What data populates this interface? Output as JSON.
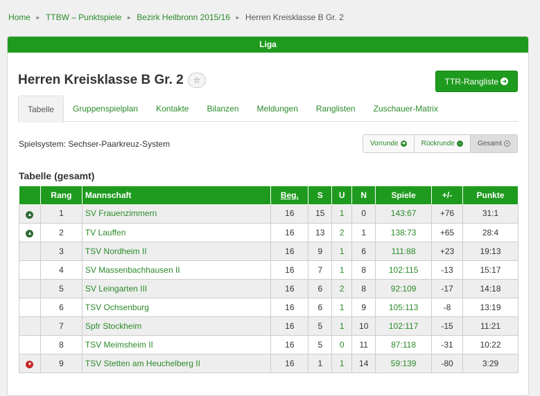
{
  "breadcrumb": [
    {
      "label": "Home",
      "link": true
    },
    {
      "label": "TTBW – Punktspiele",
      "link": true
    },
    {
      "label": "Bezirk Heilbronn 2015/16",
      "link": true
    },
    {
      "label": "Herren Kreisklasse B Gr. 2",
      "link": false
    }
  ],
  "panel_title": "Liga",
  "page_title": "Herren Kreisklasse B Gr. 2",
  "star_glyph": "☆",
  "ttr_button": "TTR-Rangliste",
  "tabs": [
    "Tabelle",
    "Gruppenspielplan",
    "Kontakte",
    "Bilanzen",
    "Meldungen",
    "Ranglisten",
    "Zuschauer-Matrix"
  ],
  "active_tab": 0,
  "spielsystem": "Spielsystem: Sechser-Paarkreuz-System",
  "round_buttons": [
    {
      "label": "Vorrunde",
      "icon": "arrow-right-circle-icon",
      "glyph": "➔",
      "active": false
    },
    {
      "label": "Rückrunde",
      "icon": "arrow-left-circle-icon",
      "glyph": "←",
      "active": false
    },
    {
      "label": "Gesamt",
      "icon": "dot-circle-icon",
      "glyph": "•",
      "active": true
    }
  ],
  "table_heading": "Tabelle (gesamt)",
  "columns": [
    "",
    "Rang",
    "Mannschaft",
    "Beg.",
    "S",
    "U",
    "N",
    "Spiele",
    "+/-",
    "Punkte"
  ],
  "rows": [
    {
      "trend": "up",
      "rang": "1",
      "team": "SV Frauenzimmern",
      "beg": "16",
      "s": "15",
      "u": "1",
      "n": "0",
      "spiele": "143:67",
      "diff": "+76",
      "punkte": "31:1"
    },
    {
      "trend": "up",
      "rang": "2",
      "team": "TV Lauffen",
      "beg": "16",
      "s": "13",
      "u": "2",
      "n": "1",
      "spiele": "138:73",
      "diff": "+65",
      "punkte": "28:4"
    },
    {
      "trend": "",
      "rang": "3",
      "team": "TSV Nordheim II",
      "beg": "16",
      "s": "9",
      "u": "1",
      "n": "6",
      "spiele": "111:88",
      "diff": "+23",
      "punkte": "19:13"
    },
    {
      "trend": "",
      "rang": "4",
      "team": "SV Massenbachhausen II",
      "beg": "16",
      "s": "7",
      "u": "1",
      "n": "8",
      "spiele": "102:115",
      "diff": "-13",
      "punkte": "15:17"
    },
    {
      "trend": "",
      "rang": "5",
      "team": "SV Leingarten III",
      "beg": "16",
      "s": "6",
      "u": "2",
      "n": "8",
      "spiele": "92:109",
      "diff": "-17",
      "punkte": "14:18"
    },
    {
      "trend": "",
      "rang": "6",
      "team": "TSV Ochsenburg",
      "beg": "16",
      "s": "6",
      "u": "1",
      "n": "9",
      "spiele": "105:113",
      "diff": "-8",
      "punkte": "13:19"
    },
    {
      "trend": "",
      "rang": "7",
      "team": "Spfr Stockheim",
      "beg": "16",
      "s": "5",
      "u": "1",
      "n": "10",
      "spiele": "102:117",
      "diff": "-15",
      "punkte": "11:21"
    },
    {
      "trend": "",
      "rang": "8",
      "team": "TSV Meimsheim II",
      "beg": "16",
      "s": "5",
      "u": "0",
      "n": "11",
      "spiele": "87:118",
      "diff": "-31",
      "punkte": "10:22"
    },
    {
      "trend": "down",
      "rang": "9",
      "team": "TSV Stetten am Heuchelberg II",
      "beg": "16",
      "s": "1",
      "u": "1",
      "n": "14",
      "spiele": "59:139",
      "diff": "-80",
      "punkte": "3:29"
    }
  ],
  "colors": {
    "accent": "#1e9b1e",
    "link": "#2a8a2a",
    "trend_up": "#2e6b35",
    "trend_down": "#c62828"
  }
}
